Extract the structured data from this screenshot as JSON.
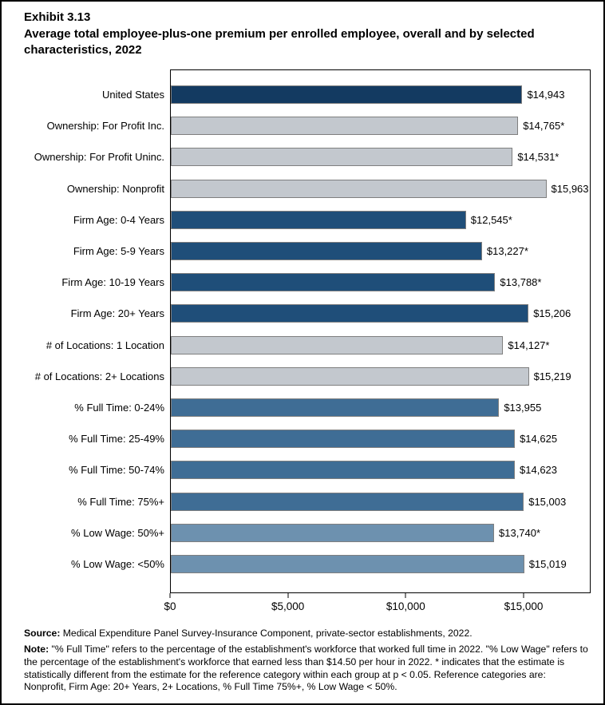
{
  "chart_data": {
    "type": "bar",
    "orientation": "horizontal",
    "exhibit": "Exhibit 3.13",
    "title": "Average total employee-plus-one premium per enrolled employee, overall and by selected characteristics, 2022",
    "axis": {
      "min": 0,
      "max": 17845,
      "grid": false,
      "ticks": [
        {
          "value": 0,
          "label": "$0"
        },
        {
          "value": 5000,
          "label": "$5,000"
        },
        {
          "value": 10000,
          "label": "$10,000"
        },
        {
          "value": 15000,
          "label": "$15,000"
        }
      ]
    },
    "palette": {
      "navy": "#133A61",
      "gray": "#C3C8CE",
      "dark_blue": "#1F4E79",
      "medium_blue": "#3F6D95",
      "slate_blue": "#6D91AF",
      "bar_border": "#7F7F7F"
    },
    "bars": [
      {
        "label": "United States",
        "value": 14943,
        "display": "$14,943",
        "color": "navy"
      },
      {
        "label": "Ownership: For Profit Inc.",
        "value": 14765,
        "display": "$14,765*",
        "color": "gray"
      },
      {
        "label": "Ownership: For Profit Uninc.",
        "value": 14531,
        "display": "$14,531*",
        "color": "gray"
      },
      {
        "label": "Ownership: Nonprofit",
        "value": 15963,
        "display": "$15,963",
        "color": "gray"
      },
      {
        "label": "Firm Age: 0-4 Years",
        "value": 12545,
        "display": "$12,545*",
        "color": "dark_blue"
      },
      {
        "label": "Firm Age: 5-9 Years",
        "value": 13227,
        "display": "$13,227*",
        "color": "dark_blue"
      },
      {
        "label": "Firm Age: 10-19 Years",
        "value": 13788,
        "display": "$13,788*",
        "color": "dark_blue"
      },
      {
        "label": "Firm Age: 20+ Years",
        "value": 15206,
        "display": "$15,206",
        "color": "dark_blue"
      },
      {
        "label": "# of Locations: 1 Location",
        "value": 14127,
        "display": "$14,127*",
        "color": "gray"
      },
      {
        "label": "# of Locations: 2+ Locations",
        "value": 15219,
        "display": "$15,219",
        "color": "gray"
      },
      {
        "label": "% Full Time: 0-24%",
        "value": 13955,
        "display": "$13,955",
        "color": "medium_blue"
      },
      {
        "label": "% Full Time: 25-49%",
        "value": 14625,
        "display": "$14,625",
        "color": "medium_blue"
      },
      {
        "label": "% Full Time: 50-74%",
        "value": 14623,
        "display": "$14,623",
        "color": "medium_blue"
      },
      {
        "label": "% Full Time: 75%+",
        "value": 15003,
        "display": "$15,003",
        "color": "medium_blue"
      },
      {
        "label": "% Low Wage: 50%+",
        "value": 13740,
        "display": "$13,740*",
        "color": "slate_blue"
      },
      {
        "label": "% Low Wage: <50%",
        "value": 15019,
        "display": "$15,019",
        "color": "slate_blue"
      }
    ]
  },
  "footer": {
    "source_label": "Source:",
    "source_text": "Medical Expenditure Panel Survey-Insurance Component, private-sector establishments, 2022.",
    "note_label": "Note:",
    "note_text": "\"% Full Time\" refers to the percentage of the establishment's workforce that worked full time in 2022. \"% Low Wage\" refers to the percentage of the establishment's workforce that earned less than $14.50 per hour in 2022. * indicates that the estimate is statistically different from the estimate for the reference category within each group at p < 0.05.  Reference categories are: Nonprofit, Firm Age: 20+ Years, 2+ Locations, % Full Time 75%+, % Low Wage < 50%."
  }
}
